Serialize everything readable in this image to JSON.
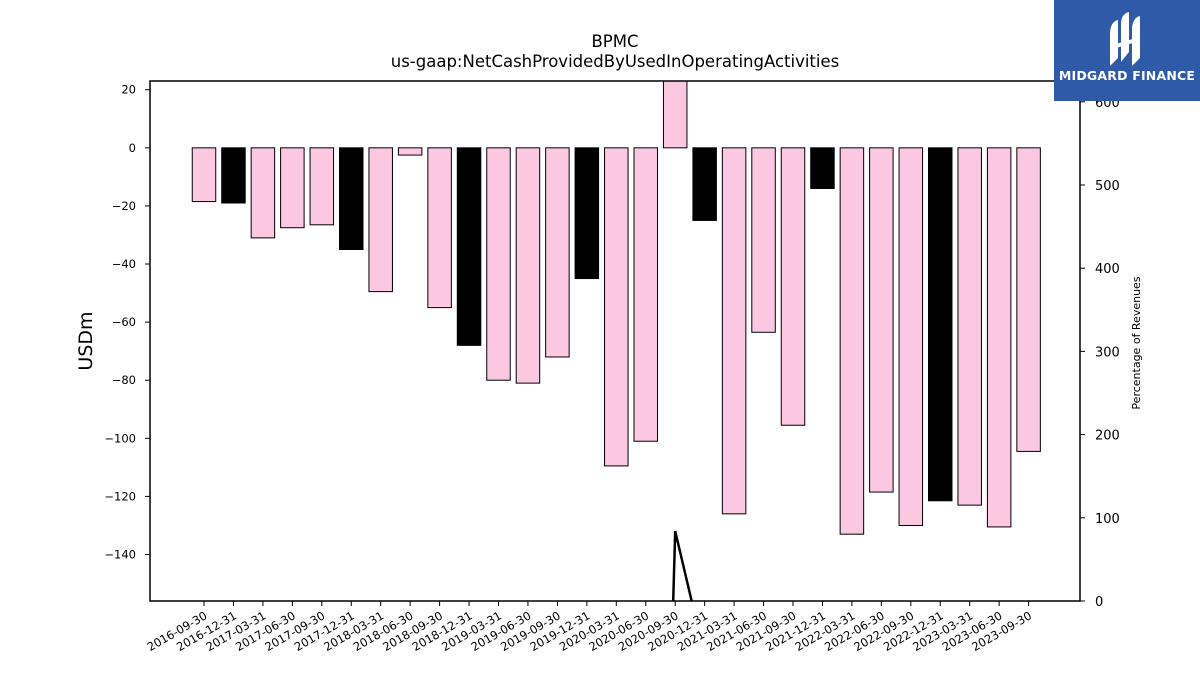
{
  "chart_data": {
    "type": "bar",
    "title": "BPMC",
    "subtitle": "us-gaap:NetCashProvidedByUsedInOperatingActivities",
    "ylabel": "USDm",
    "y2label": "Percentage of Revenues",
    "ylim": [
      -156,
      23
    ],
    "y2lim": [
      0,
      625
    ],
    "yticks": [
      20,
      0,
      -20,
      -40,
      -60,
      -80,
      -100,
      -120,
      -140
    ],
    "y2ticks": [
      0,
      100,
      200,
      300,
      400,
      500,
      600
    ],
    "categories": [
      "2016-09-30",
      "2016-12-31",
      "2017-03-31",
      "2017-06-30",
      "2017-09-30",
      "2017-12-31",
      "2018-03-31",
      "2018-06-30",
      "2018-09-30",
      "2018-12-31",
      "2019-03-31",
      "2019-06-30",
      "2019-09-30",
      "2019-12-31",
      "2020-03-31",
      "2020-06-30",
      "2020-09-30",
      "2020-12-31",
      "2021-03-31",
      "2021-06-30",
      "2021-09-30",
      "2021-12-31",
      "2022-03-31",
      "2022-06-30",
      "2022-09-30",
      "2022-12-31",
      "2023-03-31",
      "2023-06-30",
      "2023-09-30"
    ],
    "values": [
      -18.5,
      -19.0,
      -31.0,
      -27.5,
      -26.5,
      -35.0,
      -49.5,
      -2.5,
      -55.0,
      -68.0,
      -80.0,
      -81.0,
      -72.0,
      -45.0,
      -109.5,
      -101.0,
      23.0,
      -25.0,
      -126.0,
      -63.5,
      -95.5,
      -14.0,
      -133.0,
      -118.5,
      -130.0,
      -121.5,
      -123.0,
      -130.5,
      -104.5
    ],
    "bar_colors": [
      "#fcc8e1",
      "#000000",
      "#fcc8e1",
      "#fcc8e1",
      "#fcc8e1",
      "#000000",
      "#fcc8e1",
      "#fcc8e1",
      "#fcc8e1",
      "#000000",
      "#fcc8e1",
      "#fcc8e1",
      "#fcc8e1",
      "#000000",
      "#fcc8e1",
      "#fcc8e1",
      "#fcc8e1",
      "#000000",
      "#fcc8e1",
      "#fcc8e1",
      "#fcc8e1",
      "#000000",
      "#fcc8e1",
      "#fcc8e1",
      "#fcc8e1",
      "#000000",
      "#fcc8e1",
      "#fcc8e1",
      "#fcc8e1"
    ],
    "secondary_series": {
      "type": "line",
      "color": "#000000",
      "points": [
        [
          "2020-09-30",
          0
        ],
        [
          "2020-09-30",
          84
        ],
        [
          "2020-12-31",
          0
        ]
      ]
    },
    "grid": false,
    "legend": "none"
  },
  "logo": {
    "text": "MIDGARD FINANCE",
    "background": "#2f5aa8"
  }
}
